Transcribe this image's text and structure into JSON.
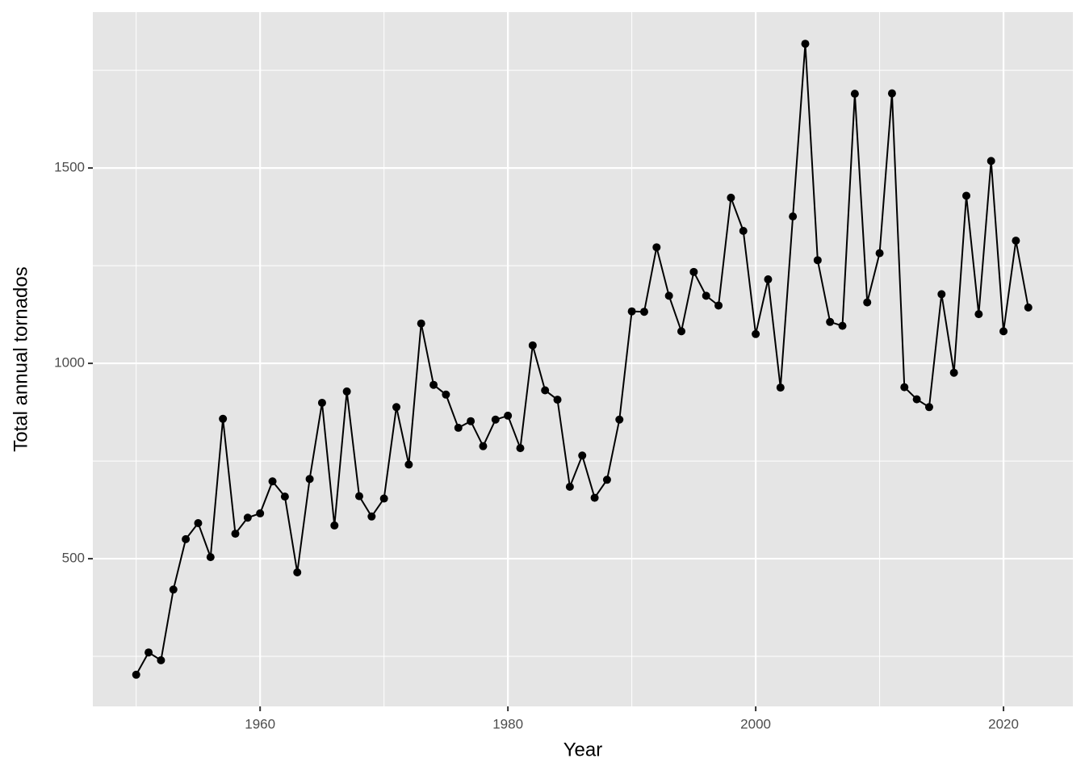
{
  "chart_data": {
    "type": "line",
    "x_label": "Year",
    "y_label": "Total annual tornados",
    "x": [
      1950,
      1951,
      1952,
      1953,
      1954,
      1955,
      1956,
      1957,
      1958,
      1959,
      1960,
      1961,
      1962,
      1963,
      1964,
      1965,
      1966,
      1967,
      1968,
      1969,
      1970,
      1971,
      1972,
      1973,
      1974,
      1975,
      1976,
      1977,
      1978,
      1979,
      1980,
      1981,
      1982,
      1983,
      1984,
      1985,
      1986,
      1987,
      1988,
      1989,
      1990,
      1991,
      1992,
      1993,
      1994,
      1995,
      1996,
      1997,
      1998,
      1999,
      2000,
      2001,
      2002,
      2003,
      2004,
      2005,
      2006,
      2007,
      2008,
      2009,
      2010,
      2011,
      2012,
      2013,
      2014,
      2015,
      2016,
      2017,
      2018,
      2019,
      2020,
      2021,
      2022
    ],
    "values": [
      203,
      260,
      240,
      421,
      550,
      591,
      504,
      858,
      564,
      605,
      616,
      698,
      659,
      465,
      704,
      899,
      585,
      928,
      660,
      608,
      654,
      888,
      741,
      1102,
      945,
      920,
      835,
      852,
      788,
      856,
      866,
      783,
      1046,
      931,
      907,
      684,
      764,
      656,
      702,
      856,
      1133,
      1132,
      1297,
      1173,
      1082,
      1234,
      1173,
      1148,
      1424,
      1339,
      1075,
      1215,
      938,
      1376,
      1818,
      1264,
      1106,
      1096,
      1690,
      1156,
      1282,
      1691,
      939,
      908,
      888,
      1177,
      976,
      1429,
      1126,
      1518,
      1082,
      1314,
      1143
    ],
    "color": "#000000",
    "xlim": [
      1946.5,
      2025.6
    ],
    "xticks": [
      1960,
      1980,
      2000,
      2020
    ],
    "minor_xticks": [
      1950,
      1970,
      1990,
      2010
    ],
    "ylim": [
      122,
      1899
    ],
    "yticks": [
      500,
      1000,
      1500
    ],
    "minor_yticks": [
      250,
      750,
      1250,
      1750
    ],
    "grid": true,
    "panel_color": "#e5e5e5"
  }
}
